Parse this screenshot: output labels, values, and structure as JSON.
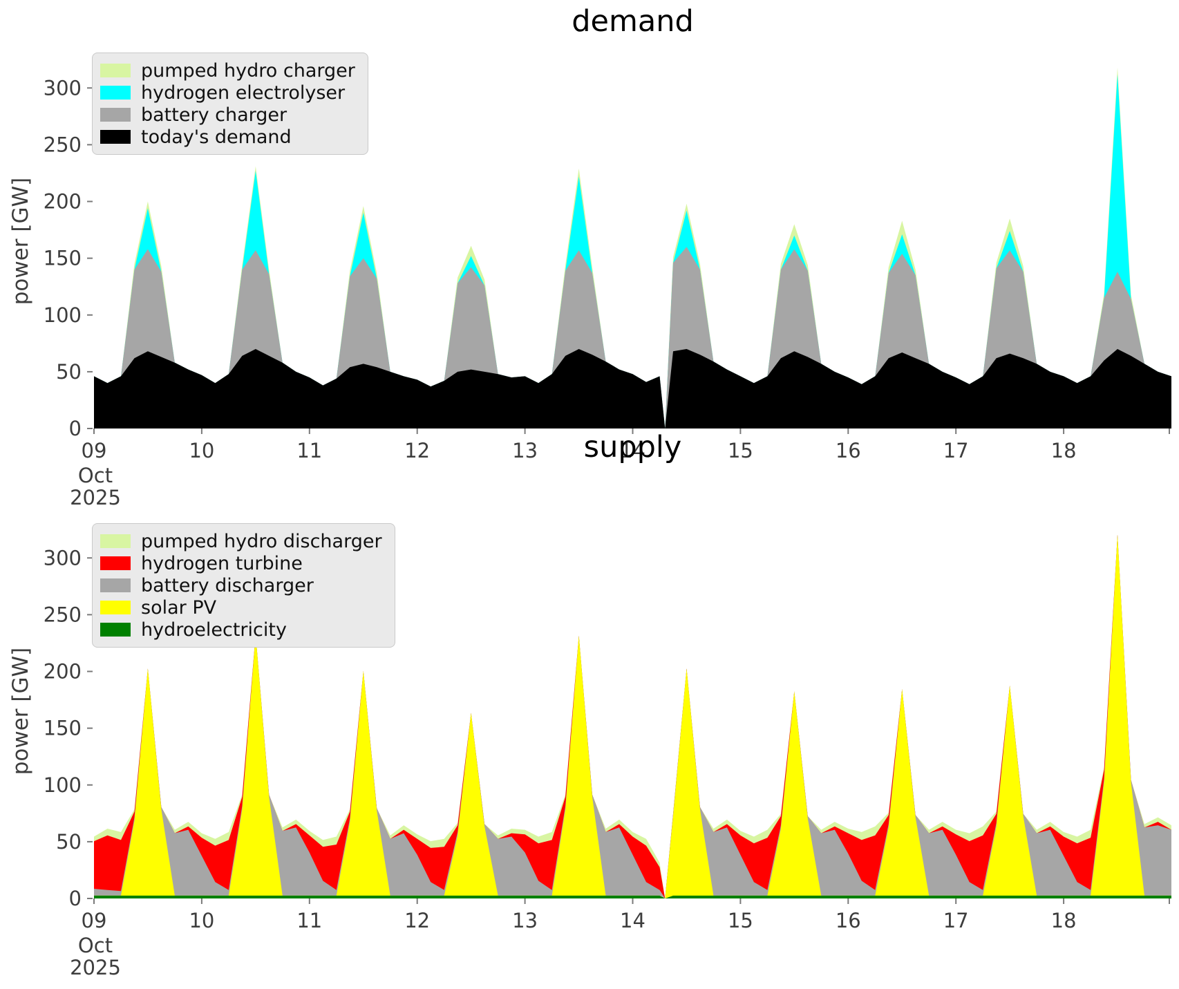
{
  "figure": {
    "background": "#ffffff",
    "tick_color": "#3d3d3d"
  },
  "axes": {
    "x": {
      "tick_labels": [
        "09",
        "10",
        "11",
        "12",
        "13",
        "14",
        "15",
        "16",
        "17",
        "18"
      ],
      "tick_positions": [
        9,
        10,
        11,
        12,
        13,
        14,
        15,
        16,
        17,
        18
      ],
      "month_label": "Oct",
      "year_label": "2025",
      "range": [
        9,
        19
      ]
    },
    "y": {
      "tick_values": [
        0,
        50,
        100,
        150,
        200,
        250,
        300
      ],
      "range": [
        0,
        330
      ]
    }
  },
  "chart_data": {
    "type": "area",
    "stacked": true,
    "grid": false,
    "legend_position": "upper left",
    "time_unit": "day of October 2025 (3-hourly samples, data gap at 14.3)",
    "time_days": [
      9.0,
      9.125,
      9.25,
      9.375,
      9.5,
      9.625,
      9.75,
      9.875,
      10.0,
      10.125,
      10.25,
      10.375,
      10.5,
      10.625,
      10.75,
      10.875,
      11.0,
      11.125,
      11.25,
      11.375,
      11.5,
      11.625,
      11.75,
      11.875,
      12.0,
      12.125,
      12.25,
      12.375,
      12.5,
      12.625,
      12.75,
      12.875,
      13.0,
      13.125,
      13.25,
      13.375,
      13.5,
      13.625,
      13.75,
      13.875,
      14.0,
      14.125,
      14.25,
      14.3,
      14.375,
      14.5,
      14.625,
      14.75,
      14.875,
      15.0,
      15.125,
      15.25,
      15.375,
      15.5,
      15.625,
      15.75,
      15.875,
      16.0,
      16.125,
      16.25,
      16.375,
      16.5,
      16.625,
      16.75,
      16.875,
      17.0,
      17.125,
      17.25,
      17.375,
      17.5,
      17.625,
      17.75,
      17.875,
      18.0,
      18.125,
      18.25,
      18.375,
      18.5,
      18.625,
      18.75,
      18.875,
      19.0
    ],
    "charts": [
      {
        "title": "demand",
        "ylabel": "power [GW]",
        "legend": [
          {
            "label": "pumped hydro charger",
            "color": "#d8f5a2"
          },
          {
            "label": "hydrogen electrolyser",
            "color": "#00ffff"
          },
          {
            "label": "battery charger",
            "color": "#a6a6a6"
          },
          {
            "label": "today's demand",
            "color": "#000000"
          }
        ],
        "series": [
          {
            "name": "today's demand",
            "color": "#000000",
            "values": [
              46,
              40,
              46,
              62,
              68,
              63,
              58,
              52,
              47,
              40,
              48,
              64,
              70,
              64,
              58,
              50,
              45,
              38,
              44,
              54,
              57,
              54,
              50,
              46,
              43,
              37,
              42,
              50,
              52,
              50,
              48,
              45,
              46,
              40,
              48,
              64,
              70,
              65,
              59,
              52,
              48,
              41,
              46,
              0,
              68,
              70,
              65,
              59,
              52,
              46,
              40,
              46,
              62,
              68,
              63,
              57,
              50,
              45,
              39,
              46,
              62,
              67,
              62,
              57,
              50,
              45,
              39,
              46,
              62,
              66,
              62,
              57,
              50,
              46,
              40,
              46,
              60,
              70,
              64,
              57,
              50,
              46
            ]
          },
          {
            "name": "battery charger",
            "color": "#a6a6a6",
            "values": [
              0,
              0,
              0,
              78,
              90,
              75,
              0,
              0,
              0,
              0,
              0,
              76,
              87,
              72,
              0,
              0,
              0,
              0,
              0,
              80,
              93,
              78,
              0,
              0,
              0,
              0,
              0,
              78,
              90,
              76,
              0,
              0,
              0,
              0,
              0,
              75,
              87,
              72,
              0,
              0,
              0,
              0,
              0,
              0,
              78,
              90,
              75,
              0,
              0,
              0,
              0,
              0,
              78,
              90,
              76,
              0,
              0,
              0,
              0,
              0,
              75,
              87,
              73,
              0,
              0,
              0,
              0,
              0,
              79,
              91,
              76,
              0,
              0,
              0,
              0,
              0,
              55,
              68,
              50,
              0,
              0,
              0
            ]
          },
          {
            "name": "hydrogen electrolyser",
            "color": "#00ffff",
            "values": [
              0,
              0,
              0,
              0,
              36,
              0,
              0,
              0,
              0,
              0,
              0,
              0,
              70,
              0,
              0,
              0,
              0,
              0,
              0,
              0,
              40,
              0,
              0,
              0,
              0,
              0,
              0,
              0,
              10,
              0,
              0,
              0,
              0,
              0,
              0,
              0,
              65,
              0,
              0,
              0,
              0,
              0,
              0,
              0,
              0,
              32,
              0,
              0,
              0,
              0,
              0,
              0,
              0,
              12,
              0,
              0,
              0,
              0,
              0,
              0,
              0,
              17,
              0,
              0,
              0,
              0,
              0,
              0,
              0,
              17,
              0,
              0,
              0,
              0,
              0,
              0,
              0,
              174,
              0,
              0,
              0,
              0
            ]
          },
          {
            "name": "pumped hydro charger",
            "color": "#d8f5a2",
            "values": [
              0,
              0,
              0,
              5,
              6,
              5,
              0,
              0,
              0,
              0,
              0,
              4,
              4,
              4,
              0,
              0,
              0,
              0,
              0,
              5,
              6,
              5,
              0,
              0,
              0,
              0,
              0,
              5,
              9,
              5,
              0,
              0,
              0,
              0,
              0,
              5,
              7,
              5,
              0,
              0,
              0,
              0,
              0,
              0,
              5,
              6,
              5,
              0,
              0,
              0,
              0,
              0,
              5,
              10,
              5,
              0,
              0,
              0,
              0,
              0,
              5,
              12,
              5,
              0,
              0,
              0,
              0,
              0,
              5,
              11,
              5,
              0,
              0,
              0,
              0,
              0,
              4,
              6,
              4,
              0,
              0,
              0
            ]
          }
        ]
      },
      {
        "title": "supply",
        "ylabel": "power [GW]",
        "legend": [
          {
            "label": "pumped hydro discharger",
            "color": "#d8f5a2"
          },
          {
            "label": "hydrogen turbine",
            "color": "#ff0000"
          },
          {
            "label": "battery discharger",
            "color": "#a6a6a6"
          },
          {
            "label": "solar PV",
            "color": "#ffff00"
          },
          {
            "label": "hydroelectricity",
            "color": "#008000"
          }
        ],
        "series": [
          {
            "name": "hydroelectricity",
            "color": "#008000",
            "values": [
              2.5,
              2.5,
              2.5,
              2.5,
              2.5,
              2.5,
              2.5,
              2.5,
              2.5,
              2.5,
              2.5,
              2.5,
              2.5,
              2.5,
              2.5,
              2.5,
              2.5,
              2.5,
              2.5,
              2.5,
              2.5,
              2.5,
              2.5,
              2.5,
              2.5,
              2.5,
              2.5,
              2.5,
              2.5,
              2.5,
              2.5,
              2.5,
              2.5,
              2.5,
              2.5,
              2.5,
              2.5,
              2.5,
              2.5,
              2.5,
              2.5,
              2.5,
              2.5,
              0,
              2.5,
              2.5,
              2.5,
              2.5,
              2.5,
              2.5,
              2.5,
              2.5,
              2.5,
              2.5,
              2.5,
              2.5,
              2.5,
              2.5,
              2.5,
              2.5,
              2.5,
              2.5,
              2.5,
              2.5,
              2.5,
              2.5,
              2.5,
              2.5,
              2.5,
              2.5,
              2.5,
              2.5,
              2.5,
              2.5,
              2.5,
              2.5,
              2.5,
              2.5,
              2.5,
              2.5,
              2.5,
              2.5
            ]
          },
          {
            "name": "solar PV",
            "color": "#ffff00",
            "values": [
              0,
              0,
              0,
              66,
              200,
              76,
              0,
              0,
              0,
              0,
              0,
              76,
              230,
              87,
              0,
              0,
              0,
              0,
              0,
              65,
              198,
              75,
              0,
              0,
              0,
              0,
              0,
              53,
              161,
              61,
              0,
              0,
              0,
              0,
              0,
              76,
              229,
              87,
              0,
              0,
              0,
              0,
              0,
              0,
              70,
              200,
              76,
              0,
              0,
              0,
              0,
              0,
              59,
              180,
              68,
              0,
              0,
              0,
              0,
              0,
              60,
              182,
              69,
              0,
              0,
              0,
              0,
              0,
              61,
              185,
              70,
              0,
              0,
              0,
              0,
              0,
              100,
              318,
              100,
              0,
              0,
              0
            ]
          },
          {
            "name": "battery discharger",
            "color": "#a6a6a6",
            "values": [
              6,
              5,
              4,
              3,
              0,
              2,
              55,
              58,
              35,
              12,
              5,
              3,
              0,
              2,
              57,
              60,
              38,
              13,
              5,
              3,
              0,
              2,
              50,
              55,
              36,
              12,
              5,
              3,
              0,
              2,
              50,
              52,
              38,
              13,
              5,
              3,
              0,
              2,
              56,
              60,
              36,
              12,
              5,
              0,
              2,
              0,
              2,
              56,
              60,
              36,
              12,
              5,
              3,
              0,
              2,
              55,
              58,
              37,
              13,
              5,
              3,
              0,
              2,
              55,
              58,
              36,
              12,
              5,
              3,
              0,
              2,
              55,
              58,
              35,
              12,
              5,
              3,
              0,
              2,
              60,
              62,
              58
            ]
          },
          {
            "name": "hydrogen turbine",
            "color": "#ff0000",
            "values": [
              42,
              48,
              45,
              5,
              0,
              0,
              0,
              3,
              16,
              32,
              44,
              8,
              0,
              0,
              0,
              3,
              15,
              30,
              40,
              6,
              0,
              0,
              0,
              3,
              14,
              30,
              38,
              6,
              0,
              0,
              0,
              3,
              16,
              33,
              44,
              8,
              0,
              0,
              0,
              3,
              16,
              32,
              20,
              0,
              0,
              0,
              0,
              0,
              3,
              17,
              34,
              46,
              8,
              0,
              0,
              0,
              3,
              18,
              36,
              48,
              8,
              0,
              0,
              0,
              3,
              18,
              36,
              48,
              8,
              0,
              0,
              0,
              3,
              17,
              34,
              46,
              8,
              0,
              0,
              0,
              3,
              0
            ]
          },
          {
            "name": "pumped hydro discharger",
            "color": "#d8f5a2",
            "values": [
              4,
              6,
              7,
              2,
              0,
              0,
              3,
              4,
              4,
              6,
              7,
              2,
              0,
              0,
              3,
              4,
              4,
              6,
              7,
              2,
              0,
              0,
              3,
              4,
              4,
              6,
              7,
              2,
              0,
              0,
              3,
              4,
              4,
              6,
              7,
              2,
              0,
              0,
              3,
              4,
              4,
              6,
              4,
              0,
              0,
              0,
              0,
              3,
              4,
              4,
              6,
              7,
              2,
              0,
              0,
              3,
              4,
              4,
              7,
              8,
              2,
              0,
              0,
              3,
              4,
              4,
              7,
              8,
              2,
              0,
              0,
              3,
              4,
              4,
              6,
              7,
              2,
              0,
              0,
              3,
              4,
              4
            ]
          }
        ]
      }
    ]
  }
}
